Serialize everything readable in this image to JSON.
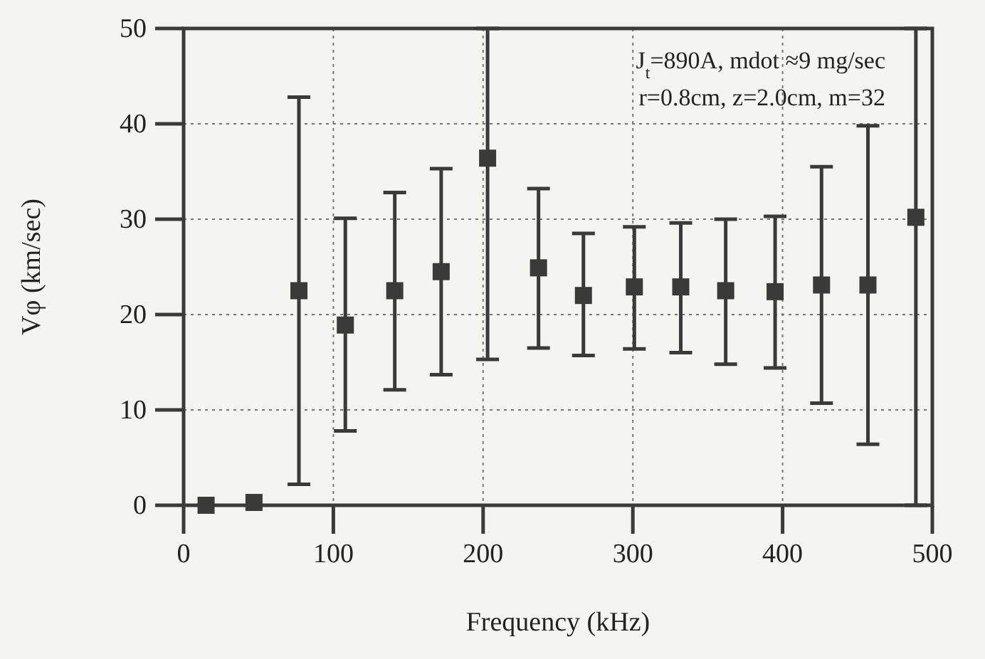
{
  "chart_data": {
    "type": "scatter",
    "xlabel": "Frequency (kHz)",
    "ylabel": "Vφ (km/sec)",
    "annotations": [
      "J$_{t}$=890A, mdot ≈9 mg/sec",
      "r=0.8cm, z=2.0cm, m=32"
    ],
    "x": [
      15,
      47,
      77,
      108,
      141,
      172,
      203,
      237,
      267,
      301,
      332,
      362,
      395,
      426,
      457,
      489
    ],
    "series": [
      {
        "color": "#3a3a3a",
        "values": [
          0,
          0.3,
          22.5,
          18.9,
          22.5,
          24.5,
          36.4,
          24.9,
          22.0,
          22.9,
          22.9,
          22.5,
          22.4,
          23.1,
          23.1,
          30.2
        ],
        "errors": [
          null,
          null,
          [
            2.2,
            42.8
          ],
          [
            7.8,
            30.1
          ],
          [
            12.1,
            32.8
          ],
          [
            13.7,
            35.3
          ],
          [
            15.3,
            50
          ],
          [
            16.5,
            33.2
          ],
          [
            15.7,
            28.5
          ],
          [
            16.4,
            29.2
          ],
          [
            16.0,
            29.6
          ],
          [
            14.8,
            30
          ],
          [
            14.4,
            30.3
          ],
          [
            10.7,
            35.5
          ],
          [
            6.4,
            39.8
          ],
          [
            0,
            50
          ]
        ]
      }
    ],
    "xlim": [
      0,
      500
    ],
    "xticks": [
      0,
      100,
      200,
      300,
      400,
      500
    ],
    "ylim": [
      0,
      50
    ],
    "yticks": [
      0,
      10,
      20,
      30,
      40,
      50
    ],
    "grid": true,
    "marker": "square"
  }
}
